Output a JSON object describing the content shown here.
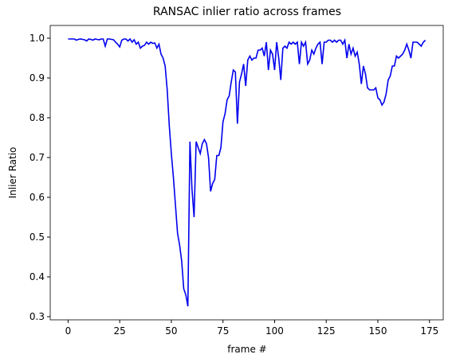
{
  "chart_data": {
    "type": "line",
    "title": "RANSAC inlier ratio across frames",
    "xlabel": "frame #",
    "ylabel": "Inlier Ratio",
    "color": "#0000ee",
    "x": [
      0,
      1,
      2,
      3,
      4,
      5,
      6,
      7,
      8,
      9,
      10,
      11,
      12,
      13,
      14,
      15,
      16,
      17,
      18,
      19,
      20,
      21,
      22,
      23,
      24,
      25,
      26,
      27,
      28,
      29,
      30,
      31,
      32,
      33,
      34,
      35,
      36,
      37,
      38,
      39,
      40,
      41,
      42,
      43,
      44,
      45,
      46,
      47,
      48,
      49,
      50,
      51,
      52,
      53,
      54,
      55,
      56,
      57,
      58,
      59,
      60,
      61,
      62,
      63,
      64,
      65,
      66,
      67,
      68,
      69,
      70,
      71,
      72,
      73,
      74,
      75,
      76,
      77,
      78,
      79,
      80,
      81,
      82,
      83,
      84,
      85,
      86,
      87,
      88,
      89,
      90,
      91,
      92,
      93,
      94,
      95,
      96,
      97,
      98,
      99,
      100,
      101,
      102,
      103,
      104,
      105,
      106,
      107,
      108,
      109,
      110,
      111,
      112,
      113,
      114,
      115,
      116,
      117,
      118,
      119,
      120,
      121,
      122,
      123,
      124,
      125,
      126,
      127,
      128,
      129,
      130,
      131,
      132,
      133,
      134,
      135,
      136,
      137,
      138,
      139,
      140,
      141,
      142,
      143,
      144,
      145,
      146,
      147,
      148,
      149,
      150,
      151,
      152,
      153,
      154,
      155,
      156,
      157,
      158,
      159,
      160,
      161,
      162,
      163,
      164,
      165,
      166,
      167,
      168,
      169,
      170,
      171,
      172,
      173
    ],
    "values": [
      0.998,
      0.998,
      0.998,
      0.998,
      0.995,
      0.997,
      0.998,
      0.997,
      0.996,
      0.993,
      0.998,
      0.997,
      0.995,
      0.998,
      0.997,
      0.996,
      0.998,
      0.998,
      0.98,
      0.998,
      0.998,
      0.997,
      0.996,
      0.99,
      0.985,
      0.978,
      0.995,
      0.998,
      0.998,
      0.993,
      0.998,
      0.99,
      0.996,
      0.985,
      0.99,
      0.975,
      0.98,
      0.982,
      0.99,
      0.985,
      0.99,
      0.987,
      0.988,
      0.975,
      0.985,
      0.96,
      0.95,
      0.93,
      0.87,
      0.78,
      0.71,
      0.65,
      0.58,
      0.51,
      0.48,
      0.44,
      0.37,
      0.355,
      0.326,
      0.74,
      0.62,
      0.55,
      0.74,
      0.725,
      0.71,
      0.735,
      0.745,
      0.735,
      0.7,
      0.615,
      0.635,
      0.645,
      0.705,
      0.705,
      0.725,
      0.79,
      0.81,
      0.845,
      0.855,
      0.89,
      0.92,
      0.915,
      0.785,
      0.89,
      0.91,
      0.935,
      0.88,
      0.945,
      0.955,
      0.945,
      0.95,
      0.95,
      0.97,
      0.97,
      0.975,
      0.955,
      0.99,
      0.92,
      0.97,
      0.96,
      0.92,
      0.99,
      0.95,
      0.895,
      0.975,
      0.98,
      0.975,
      0.99,
      0.985,
      0.99,
      0.985,
      0.99,
      0.935,
      0.99,
      0.98,
      0.99,
      0.935,
      0.945,
      0.97,
      0.96,
      0.975,
      0.985,
      0.99,
      0.935,
      0.99,
      0.99,
      0.995,
      0.995,
      0.99,
      0.995,
      0.99,
      0.995,
      0.995,
      0.985,
      0.995,
      0.95,
      0.985,
      0.96,
      0.975,
      0.955,
      0.965,
      0.935,
      0.885,
      0.93,
      0.91,
      0.875,
      0.87,
      0.87,
      0.87,
      0.875,
      0.85,
      0.845,
      0.832,
      0.84,
      0.86,
      0.895,
      0.905,
      0.93,
      0.93,
      0.955,
      0.95,
      0.955,
      0.96,
      0.97,
      0.985,
      0.97,
      0.95,
      0.99,
      0.99,
      0.99,
      0.985,
      0.98,
      0.99,
      0.995
    ],
    "xlim": [
      -8.65,
      181.65
    ],
    "xticks": [
      0,
      25,
      50,
      75,
      100,
      125,
      150,
      175
    ],
    "ylim": [
      0.292,
      1.032
    ],
    "yticks": [
      0.3,
      0.4,
      0.5,
      0.6,
      0.7,
      0.8,
      0.9,
      {
        "value": 1,
        "label": "1.0"
      }
    ]
  }
}
